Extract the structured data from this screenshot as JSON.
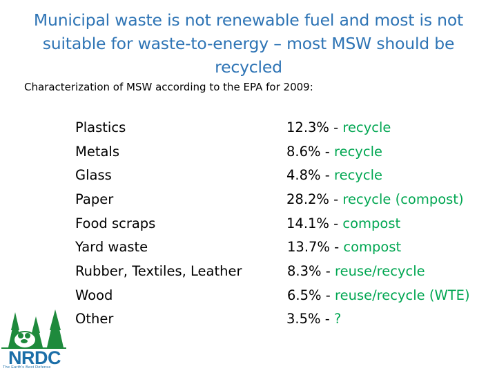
{
  "title": "Municipal waste is not renewable fuel and most is not suitable for waste-to-energy – most MSW should be recycled",
  "subtitle": "Characterization of MSW according to the EPA for 2009:",
  "rows": [
    {
      "category": "Plastics",
      "value": "12.3%",
      "action": "recycle"
    },
    {
      "category": "Metals",
      "value": "8.6%",
      "action": "recycle"
    },
    {
      "category": "Glass",
      "value": "4.8%",
      "action": "recycle"
    },
    {
      "category": "Paper",
      "value": "28.2%",
      "action": "recycle (compost)"
    },
    {
      "category": "Food scraps",
      "value": "14.1%",
      "action": "compost"
    },
    {
      "category": "Yard waste",
      "value": "13.7%",
      "action": "compost"
    },
    {
      "category": "Rubber, Textiles, Leather",
      "value": "8.3%",
      "action": "reuse/recycle"
    },
    {
      "category": "Wood",
      "value": "6.5%",
      "action": "reuse/recycle (WTE)"
    },
    {
      "category": "Other",
      "value": "3.5%",
      "action": "?"
    }
  ],
  "logo": {
    "name": "NRDC",
    "tagline": "The Earth's Best Defense",
    "color": "#1b6ea8"
  },
  "colors": {
    "title": "#2e74b5",
    "action": "#00a651",
    "text": "#000000"
  }
}
